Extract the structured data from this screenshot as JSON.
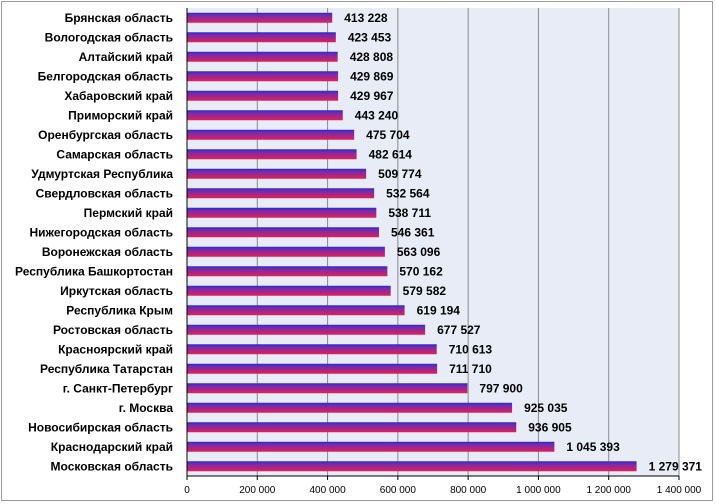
{
  "chart_data": {
    "type": "bar",
    "orientation": "horizontal",
    "title": "",
    "xlabel": "",
    "ylabel": "",
    "xlim": [
      0,
      1400000
    ],
    "grid": true,
    "legend": "none",
    "bar_color_top": "#2b2bd6",
    "bar_color_bottom": "#e0205a",
    "plot_background": "#e8ecf6",
    "gridline_color": "#8a8a8a",
    "categories": [
      "Брянская область",
      "Вологодская область",
      "Алтайский край",
      "Белгородская область",
      "Хабаровский край",
      "Приморский край",
      "Оренбургская область",
      "Самарская область",
      "Удмуртская Республика",
      "Свердловская область",
      "Пермский край",
      "Нижегородская область",
      "Воронежская область",
      "Республика Башкортостан",
      "Иркутская область",
      "Республика Крым",
      "Ростовская область",
      "Красноярский край",
      "Республика Татарстан",
      "г. Санкт-Петербург",
      "г. Москва",
      "Новосибирская область",
      "Краснодарский край",
      "Московская область"
    ],
    "values": [
      413228,
      423453,
      428808,
      429869,
      429967,
      443240,
      475704,
      482614,
      509774,
      532564,
      538711,
      546361,
      563096,
      570162,
      579582,
      619194,
      677527,
      710613,
      711710,
      797900,
      925035,
      936905,
      1045393,
      1279371
    ],
    "value_labels": [
      "413 228",
      "423 453",
      "428 808",
      "429 869",
      "429 967",
      "443 240",
      "475 704",
      "482 614",
      "509 774",
      "532 564",
      "538 711",
      "546 361",
      "563 096",
      "570 162",
      "579 582",
      "619 194",
      "677 527",
      "710 613",
      "711 710",
      "797 900",
      "925 035",
      "936 905",
      "1 045 393",
      "1 279 371"
    ],
    "x_ticks": [
      0,
      200000,
      400000,
      600000,
      800000,
      1000000,
      1200000,
      1400000
    ],
    "x_tick_labels": [
      "0",
      "200 000",
      "400 000",
      "600 000",
      "800 000",
      "1 000 000",
      "1 200 000",
      "1 400 000"
    ]
  }
}
